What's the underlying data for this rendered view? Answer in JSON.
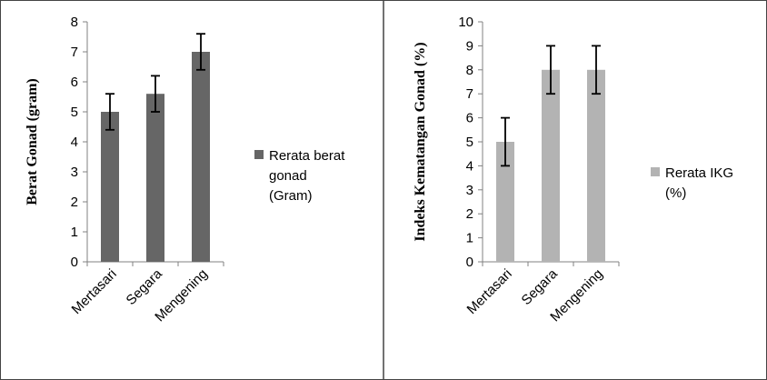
{
  "chart_data": [
    {
      "type": "bar",
      "categories": [
        "Mertasari",
        "Segara",
        "Mengening"
      ],
      "series": [
        {
          "name": "Rerata berat gonad (Gram)",
          "legend_lines": [
            "Rerata berat",
            "gonad",
            "(Gram)"
          ],
          "values": [
            5.0,
            5.6,
            7.0
          ],
          "errors": [
            0.6,
            0.6,
            0.6
          ],
          "color": "#666666"
        }
      ],
      "title": "",
      "xlabel": "",
      "ylabel": "Berat Gonad (gram)",
      "ylim": [
        0,
        8
      ],
      "yticks": [
        0,
        1,
        2,
        3,
        4,
        5,
        6,
        7,
        8
      ],
      "grid": false,
      "legend_position": "right"
    },
    {
      "type": "bar",
      "categories": [
        "Mertasari",
        "Segara",
        "Mengening"
      ],
      "series": [
        {
          "name": "Rerata IKG (%)",
          "legend_lines": [
            "Rerata IKG",
            "(%)"
          ],
          "values": [
            5,
            8,
            8
          ],
          "errors": [
            1,
            1,
            1
          ],
          "color": "#b3b3b3"
        }
      ],
      "title": "",
      "xlabel": "",
      "ylabel": "Indeks Kematangan Gonad (%)",
      "ylim": [
        0,
        10
      ],
      "yticks": [
        0,
        1,
        2,
        3,
        4,
        5,
        6,
        7,
        8,
        9,
        10
      ],
      "grid": false,
      "legend_position": "right"
    }
  ]
}
